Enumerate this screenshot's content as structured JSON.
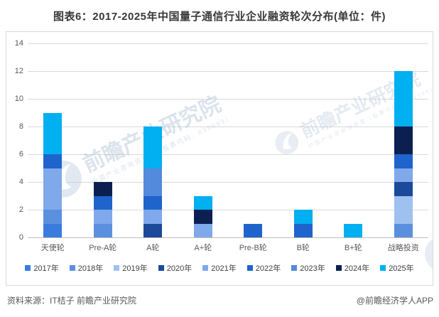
{
  "title": "图表6：2017-2025年中国量子通信行业企业融资轮次分布(单位：件)",
  "chart_data": {
    "type": "bar",
    "subtype": "stacked-vertical",
    "title": "图表6：2017-2025年中国量子通信行业企业融资轮次分布",
    "unit": "件",
    "categories": [
      "天使轮",
      "Pre-A轮",
      "A轮",
      "A+轮",
      "Pre-B轮",
      "B轮",
      "B+轮",
      "战略投资"
    ],
    "series": [
      {
        "name": "2017年",
        "color": "#3A7BDE",
        "values": [
          1,
          0,
          0,
          0,
          0,
          0,
          0,
          0
        ]
      },
      {
        "name": "2018年",
        "color": "#5B90DF",
        "values": [
          1,
          1,
          0,
          0,
          0,
          0,
          0,
          1
        ]
      },
      {
        "name": "2019年",
        "color": "#9FC1EF",
        "values": [
          0,
          0,
          0,
          0,
          0,
          0,
          0,
          2
        ]
      },
      {
        "name": "2020年",
        "color": "#1B4A9B",
        "values": [
          0,
          0,
          1,
          0,
          0,
          0,
          0,
          1
        ]
      },
      {
        "name": "2021年",
        "color": "#7FA9EA",
        "values": [
          3,
          1,
          1,
          1,
          0,
          0,
          0,
          1
        ]
      },
      {
        "name": "2022年",
        "color": "#1E64CC",
        "values": [
          1,
          1,
          1,
          0,
          1,
          1,
          0,
          1
        ]
      },
      {
        "name": "2023年",
        "color": "#548ADB",
        "values": [
          0,
          0,
          2,
          0,
          0,
          0,
          0,
          0
        ]
      },
      {
        "name": "2024年",
        "color": "#0B2050",
        "values": [
          0,
          1,
          0,
          1,
          0,
          0,
          0,
          2
        ]
      },
      {
        "name": "2025年",
        "color": "#00B0F0",
        "values": [
          3,
          0,
          3,
          1,
          0,
          1,
          1,
          4
        ]
      }
    ],
    "category_totals": [
      9,
      4,
      8,
      3,
      1,
      2,
      1,
      12
    ],
    "ylim": [
      0,
      14
    ],
    "ytick_step": 2,
    "grid": true,
    "legend_position": "bottom"
  },
  "watermark": {
    "brand": "前瞻产业研究院",
    "sub": "中国产业咨询领导者（股票代码：839599）"
  },
  "footer": {
    "source": "资料来源：IT桔子 前瞻产业研究院",
    "credit": "@前瞻经济学人APP"
  },
  "colors": {
    "grid": "#d9d9d9",
    "axis": "#bfbfbf",
    "axis_text": "#595959",
    "title_text": "#383838",
    "accent_cyan": "#00B0F0"
  }
}
